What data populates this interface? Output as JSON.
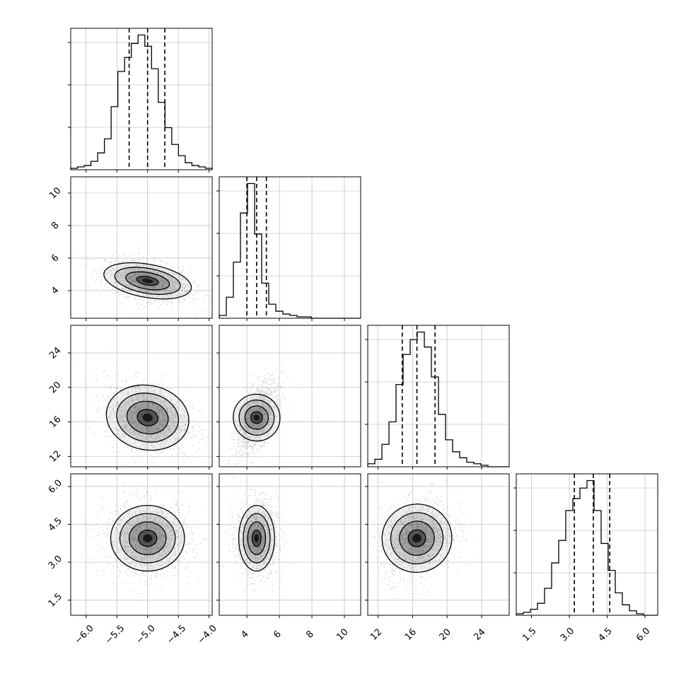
{
  "chart_data": {
    "type": "corner",
    "grid": true,
    "parameters": [
      {
        "index": 0,
        "xlim": [
          -6.25,
          -3.95
        ],
        "ticks": [
          -6.0,
          -5.5,
          -5.0,
          -4.5,
          -4.0
        ],
        "tick_labels": [
          "−6.0",
          "−5.5",
          "−5.0",
          "−4.5",
          "−4.0"
        ],
        "quantiles": [
          -5.3,
          -5.0,
          -4.72
        ],
        "peak": -5.0,
        "sigma": 0.3
      },
      {
        "index": 1,
        "xlim": [
          2.3,
          11.0
        ],
        "ticks": [
          4,
          6,
          8,
          10
        ],
        "tick_labels": [
          "4",
          "6",
          "8",
          "10"
        ],
        "quantiles": [
          4.0,
          4.6,
          5.2
        ],
        "peak": 4.6,
        "sigma": 0.55
      },
      {
        "index": 2,
        "xlim": [
          10.8,
          27.2
        ],
        "ticks": [
          12,
          16,
          20,
          24
        ],
        "tick_labels": [
          "12",
          "16",
          "20",
          "24"
        ],
        "quantiles": [
          14.8,
          16.5,
          18.6
        ],
        "peak": 16.5,
        "sigma": 1.8
      },
      {
        "index": 3,
        "xlim": [
          0.9,
          6.5
        ],
        "ticks": [
          1.5,
          3.0,
          4.5,
          6.0
        ],
        "tick_labels": [
          "1.5",
          "3.0",
          "4.5",
          "6.0"
        ],
        "quantiles": [
          3.2,
          3.95,
          4.6
        ],
        "peak": 3.95,
        "sigma": 0.65
      }
    ],
    "histograms": [
      {
        "param": 0,
        "edges": [
          -6.25,
          -3.95
        ],
        "counts": [
          1,
          2,
          3,
          6,
          12,
          22,
          45,
          70,
          80,
          90,
          96,
          88,
          72,
          48,
          30,
          18,
          10,
          5,
          3,
          2,
          1
        ]
      },
      {
        "param": 1,
        "edges": [
          2.3,
          11.0
        ],
        "counts": [
          2,
          15,
          40,
          75,
          96,
          60,
          25,
          10,
          5,
          3,
          2,
          1,
          1,
          0,
          0,
          0,
          0,
          0,
          0,
          0
        ]
      },
      {
        "param": 2,
        "edges": [
          10.8,
          27.2
        ],
        "counts": [
          2,
          5,
          15,
          30,
          55,
          75,
          85,
          90,
          80,
          60,
          35,
          18,
          10,
          6,
          3,
          2,
          1,
          0,
          0,
          0
        ]
      },
      {
        "param": 3,
        "edges": [
          0.9,
          6.5
        ],
        "counts": [
          1,
          2,
          4,
          8,
          18,
          35,
          50,
          70,
          78,
          85,
          90,
          70,
          48,
          30,
          15,
          7,
          3,
          1,
          0,
          0
        ]
      }
    ],
    "pairs": [
      {
        "row": 1,
        "col": 0,
        "center": [
          -5.0,
          4.6
        ],
        "sd": [
          0.3,
          0.55
        ],
        "rho": -0.4
      },
      {
        "row": 2,
        "col": 0,
        "center": [
          -5.0,
          16.5
        ],
        "sd": [
          0.3,
          1.8
        ],
        "rho": -0.25
      },
      {
        "row": 2,
        "col": 1,
        "center": [
          4.6,
          16.5
        ],
        "sd": [
          0.55,
          1.8
        ],
        "rho": 0.6
      },
      {
        "row": 3,
        "col": 0,
        "center": [
          -5.0,
          3.95
        ],
        "sd": [
          0.3,
          0.65
        ],
        "rho": 0.0
      },
      {
        "row": 3,
        "col": 1,
        "center": [
          4.6,
          3.95
        ],
        "sd": [
          0.55,
          0.65
        ],
        "rho": 0.0
      },
      {
        "row": 3,
        "col": 2,
        "center": [
          16.5,
          3.95
        ],
        "sd": [
          1.8,
          0.65
        ],
        "rho": 0.25
      }
    ],
    "contour_levels_sigma": [
      0.5,
      1.0,
      1.5,
      2.0
    ],
    "colors": {
      "line": "#000000",
      "grid": "#b0b0b0",
      "scatter": "#a0a0a0",
      "shade": "#000000"
    }
  }
}
